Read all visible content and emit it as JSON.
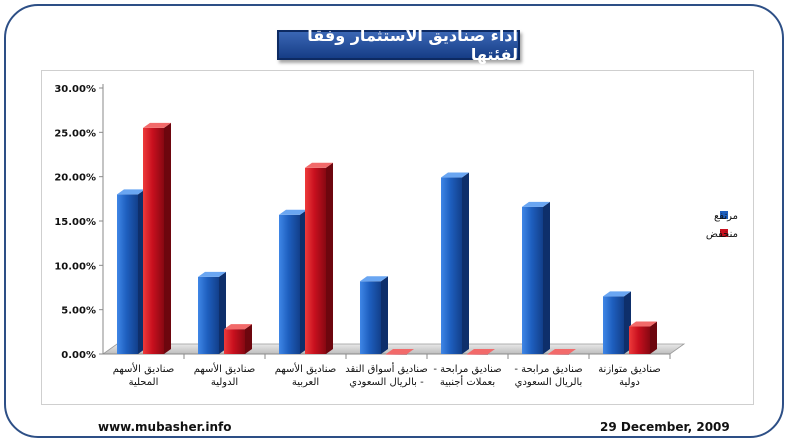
{
  "title": "اداء صناديق الاستثمار وفقا لفئتها",
  "footer": {
    "website": "www.mubasher.info",
    "date": "29 December, 2009"
  },
  "colors": {
    "rise": "#1e5fbf",
    "fall": "#c8101e",
    "frame": "#2d4f86"
  },
  "chart_data": {
    "type": "bar",
    "categories": [
      [
        "صناديق الأسهم",
        "المحلية"
      ],
      [
        "صناديق الأسهم",
        "الدولية"
      ],
      [
        "صناديق الأسهم",
        "العربية"
      ],
      [
        "صناديق أسواق النقد",
        "- بالريال السعودي"
      ],
      [
        "صناديق مرابحة -",
        "بعملات أجنبية"
      ],
      [
        "صناديق مرابحة -",
        "بالريال السعودي"
      ],
      [
        "صناديق متوازنة",
        "دولية"
      ]
    ],
    "series": [
      {
        "name": "مرتفع",
        "values": [
          18.0,
          8.7,
          15.7,
          8.2,
          19.9,
          16.6,
          6.5
        ]
      },
      {
        "name": "منخفض",
        "values": [
          25.5,
          2.8,
          21.0,
          0.0,
          0.0,
          0.0,
          3.1
        ]
      }
    ],
    "yticks": [
      "0.00%",
      "5.00%",
      "10.00%",
      "15.00%",
      "20.00%",
      "25.00%",
      "30.00%"
    ],
    "ylim": [
      0,
      30
    ],
    "legend_position": "right",
    "grid": false
  }
}
